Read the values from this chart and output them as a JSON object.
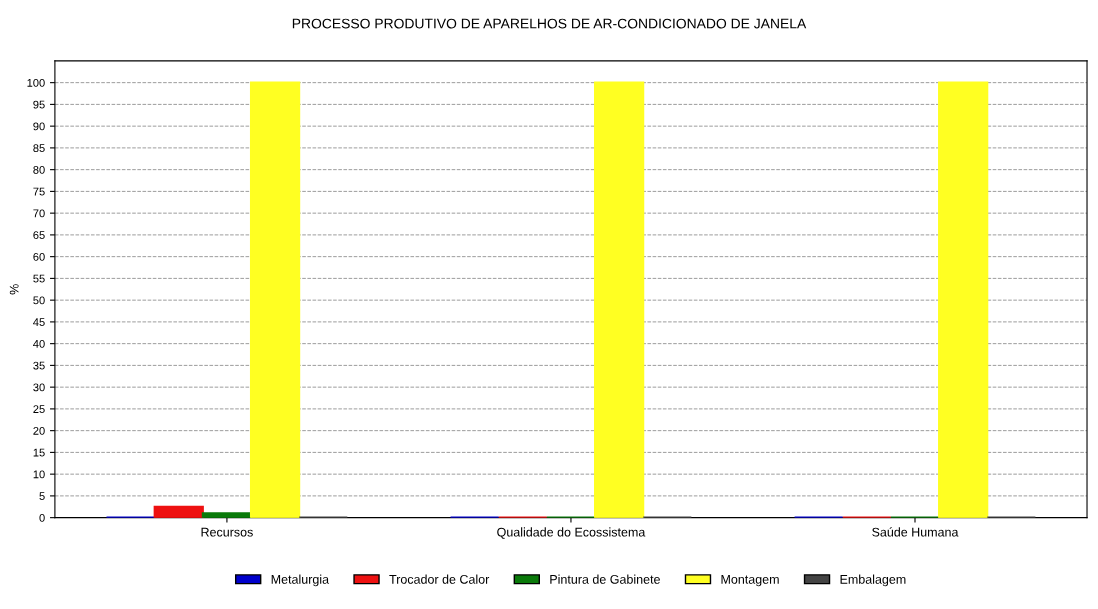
{
  "chart_data": {
    "type": "bar",
    "title": "PROCESSO PRODUTIVO DE APARELHOS DE AR-CONDICIONADO DE JANELA",
    "ylabel": "%",
    "categories": [
      "Recursos",
      "Qualidade do Ecossistema",
      "Saúde Humana"
    ],
    "series": [
      {
        "name": "Metalurgia",
        "color": "#0000cc",
        "values": [
          0,
          0,
          0
        ]
      },
      {
        "name": "Trocador de Calor",
        "color": "#ee1111",
        "values": [
          2.5,
          0,
          0
        ]
      },
      {
        "name": "Pintura de Gabinete",
        "color": "#0a7a0a",
        "values": [
          1,
          0,
          0
        ]
      },
      {
        "name": "Montagem",
        "color": "#ffff22",
        "values": [
          100,
          100,
          100
        ]
      },
      {
        "name": "Embalagem",
        "color": "#444444",
        "values": [
          0,
          0,
          0
        ]
      }
    ],
    "ylim": [
      0,
      105
    ],
    "yticks": [
      0,
      5,
      10,
      15,
      20,
      25,
      30,
      35,
      40,
      45,
      50,
      55,
      60,
      65,
      70,
      75,
      80,
      85,
      90,
      95,
      100
    ],
    "grid": "y",
    "legend": "bottom"
  }
}
